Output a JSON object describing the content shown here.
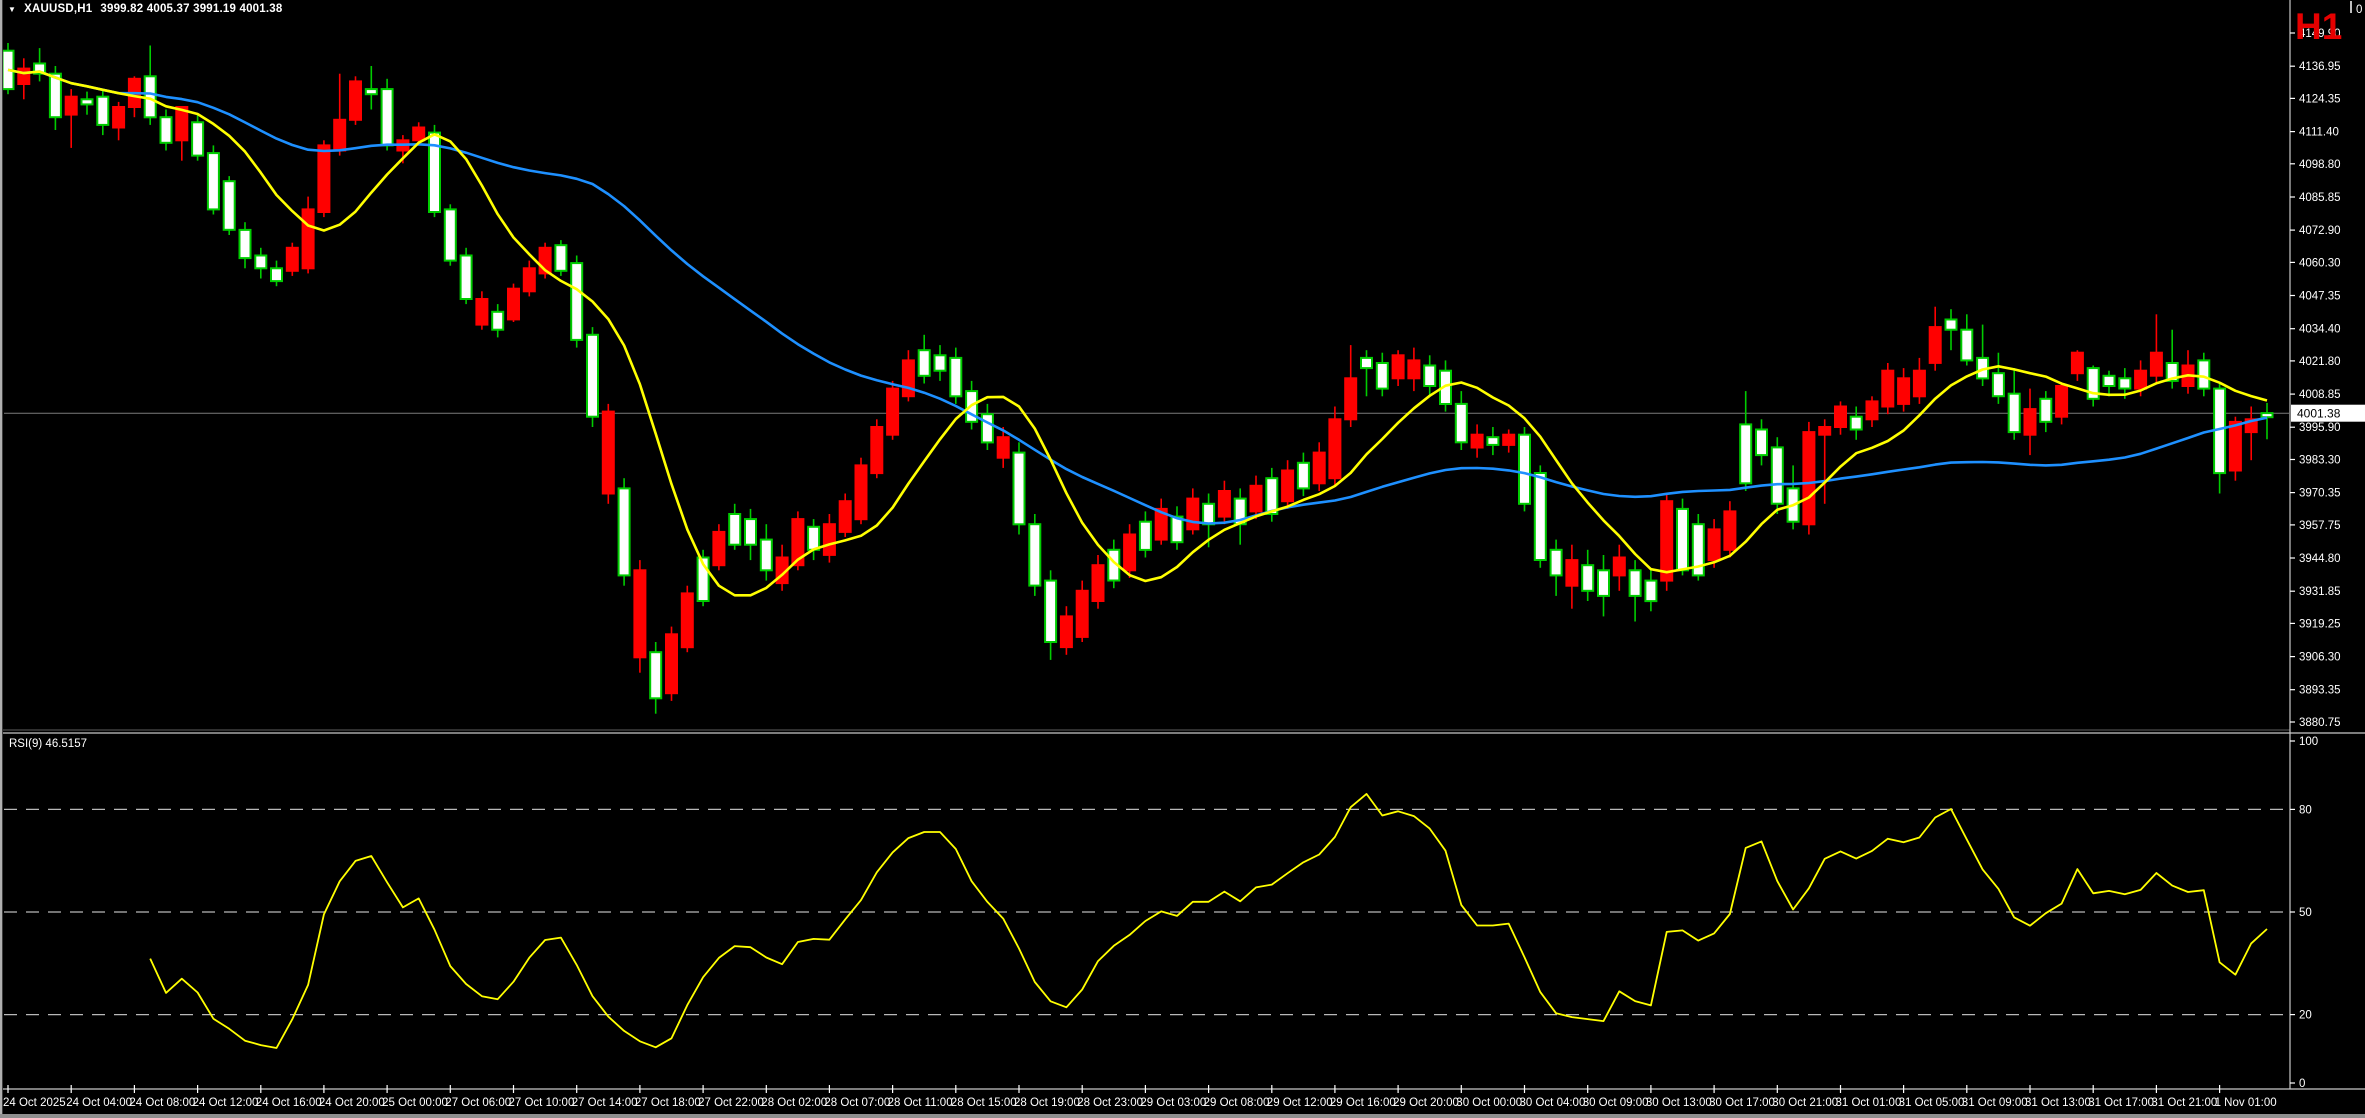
{
  "window": {
    "title_symbol": "XAUUSD,H1",
    "title_quotes": "3999.82 4005.37 3991.19 4001.38",
    "corner_label": "0"
  },
  "timeframe_badge": "H1",
  "indicator_label": "RSI(9) 46.5157",
  "price_axis": {
    "current_price": "4001.38",
    "labels": [
      "4149.90",
      "4136.95",
      "4124.35",
      "4111.40",
      "4098.80",
      "4085.85",
      "4072.90",
      "4060.30",
      "4047.35",
      "4034.40",
      "4021.80",
      "4008.85",
      "3995.90",
      "3983.30",
      "3970.35",
      "3957.75",
      "3944.80",
      "3931.85",
      "3919.25",
      "3906.30",
      "3893.35",
      "3880.75"
    ]
  },
  "rsi_axis": {
    "labels": [
      "100",
      "80",
      "50",
      "20",
      "0"
    ],
    "values": [
      100,
      80,
      50,
      20,
      0
    ],
    "dashed_levels": [
      80,
      50,
      20
    ]
  },
  "time_axis": {
    "labels": [
      "24 Oct 2025",
      "24 Oct 04:00",
      "24 Oct 08:00",
      "24 Oct 12:00",
      "24 Oct 16:00",
      "24 Oct 20:00",
      "25 Oct 00:00",
      "27 Oct 06:00",
      "27 Oct 10:00",
      "27 Oct 14:00",
      "27 Oct 18:00",
      "27 Oct 22:00",
      "28 Oct 02:00",
      "28 Oct 07:00",
      "28 Oct 11:00",
      "28 Oct 15:00",
      "28 Oct 19:00",
      "28 Oct 23:00",
      "29 Oct 03:00",
      "29 Oct 08:00",
      "29 Oct 12:00",
      "29 Oct 16:00",
      "29 Oct 20:00",
      "30 Oct 00:00",
      "30 Oct 04:00",
      "30 Oct 09:00",
      "30 Oct 13:00",
      "30 Oct 17:00",
      "30 Oct 21:00",
      "31 Oct 01:00",
      "31 Oct 05:00",
      "31 Oct 09:00",
      "31 Oct 13:00",
      "31 Oct 17:00",
      "31 Oct 21:00",
      "1 Nov 01:00"
    ]
  },
  "colors": {
    "background": "#000000",
    "bull_fill": "#ffffff",
    "bull_border": "#00cc00",
    "bear": "#ff0000",
    "ma_fast": "#ffff00",
    "ma_slow": "#1e90ff",
    "rsi_line": "#ffff00",
    "price_line": "#7a7a7a",
    "axis_text": "#ffffff",
    "axis_line": "#c8c8c8",
    "level_dash": "#b8b8b8",
    "badge": "#e60000"
  },
  "chart_data": {
    "type": "candlestick",
    "symbol": "XAUUSD",
    "timeframe": "H1",
    "title": "XAUUSD,H1 3999.82 4005.37 3991.19 4001.38",
    "ohlc": {
      "open": 3999.82,
      "high": 4005.37,
      "low": 3991.19,
      "close": 4001.38
    },
    "y_axis_range": [
      3880.75,
      4149.9
    ],
    "candle_format": [
      "high",
      "body_top",
      "body_bottom",
      "low",
      "bullish(1=white,0=red)"
    ],
    "candles": [
      [
        4146,
        4143,
        4128,
        4126,
        1
      ],
      [
        4140,
        4136,
        4130,
        4124,
        0
      ],
      [
        4144,
        4138,
        4134,
        4131,
        1
      ],
      [
        4137,
        4134,
        4117,
        4112,
        1
      ],
      [
        4128,
        4125,
        4118,
        4105,
        0
      ],
      [
        4127,
        4124,
        4122,
        4118,
        1
      ],
      [
        4128,
        4125,
        4114,
        4110,
        1
      ],
      [
        4123,
        4121,
        4113,
        4108,
        0
      ],
      [
        4133,
        4132,
        4121,
        4117,
        0
      ],
      [
        4145,
        4133,
        4117,
        4114,
        1
      ],
      [
        4120,
        4117,
        4107,
        4104,
        1
      ],
      [
        4121,
        4121,
        4108,
        4100,
        0
      ],
      [
        4118,
        4115,
        4102,
        4100,
        1
      ],
      [
        4106,
        4103,
        4081,
        4079,
        1
      ],
      [
        4094,
        4092,
        4073,
        4071,
        1
      ],
      [
        4076,
        4073,
        4062,
        4058,
        1
      ],
      [
        4066,
        4063,
        4058,
        4054,
        1
      ],
      [
        4061,
        4058,
        4053,
        4051,
        1
      ],
      [
        4068,
        4066,
        4057,
        4055,
        0
      ],
      [
        4086,
        4081,
        4058,
        4056,
        0
      ],
      [
        4108,
        4106,
        4080,
        4078,
        0
      ],
      [
        4134,
        4116,
        4104,
        4102,
        0
      ],
      [
        4133,
        4131,
        4116,
        4114,
        0
      ],
      [
        4137,
        4128,
        4126,
        4120,
        1
      ],
      [
        4132,
        4128,
        4106,
        4104,
        1
      ],
      [
        4110,
        4108,
        4104,
        4099,
        0
      ],
      [
        4115,
        4113,
        4108,
        4106,
        0
      ],
      [
        4114,
        4111,
        4080,
        4078,
        1
      ],
      [
        4083,
        4081,
        4061,
        4059,
        1
      ],
      [
        4066,
        4063,
        4046,
        4044,
        1
      ],
      [
        4049,
        4046,
        4036,
        4034,
        0
      ],
      [
        4044,
        4041,
        4034,
        4031,
        1
      ],
      [
        4052,
        4050,
        4038,
        4037,
        0
      ],
      [
        4061,
        4058,
        4049,
        4047,
        0
      ],
      [
        4068,
        4066,
        4056,
        4054,
        0
      ],
      [
        4069,
        4067,
        4057,
        4055,
        1
      ],
      [
        4063,
        4060,
        4030,
        4027,
        1
      ],
      [
        4035,
        4032,
        4000,
        3996,
        1
      ],
      [
        4005,
        4002,
        3970,
        3966,
        0
      ],
      [
        3976,
        3972,
        3938,
        3934,
        1
      ],
      [
        3944,
        3940,
        3906,
        3900,
        0
      ],
      [
        3912,
        3908,
        3890,
        3884,
        1
      ],
      [
        3918,
        3915,
        3892,
        3889,
        0
      ],
      [
        3934,
        3931,
        3910,
        3908,
        0
      ],
      [
        3948,
        3945,
        3928,
        3926,
        1
      ],
      [
        3958,
        3955,
        3942,
        3940,
        0
      ],
      [
        3966,
        3962,
        3950,
        3948,
        1
      ],
      [
        3964,
        3960,
        3950,
        3944,
        1
      ],
      [
        3958,
        3952,
        3940,
        3936,
        1
      ],
      [
        3950,
        3945,
        3935,
        3932,
        0
      ],
      [
        3963,
        3960,
        3942,
        3940,
        0
      ],
      [
        3960,
        3957,
        3948,
        3944,
        1
      ],
      [
        3962,
        3958,
        3946,
        3943,
        0
      ],
      [
        3970,
        3967,
        3955,
        3953,
        0
      ],
      [
        3984,
        3981,
        3960,
        3958,
        0
      ],
      [
        3999,
        3996,
        3978,
        3976,
        0
      ],
      [
        4014,
        4011,
        3993,
        3991,
        0
      ],
      [
        4026,
        4022,
        4008,
        4006,
        0
      ],
      [
        4032,
        4026,
        4016,
        4013,
        1
      ],
      [
        4028,
        4024,
        4018,
        4014,
        1
      ],
      [
        4027,
        4023,
        4008,
        4005,
        1
      ],
      [
        4014,
        4010,
        3998,
        3995,
        1
      ],
      [
        4005,
        4001,
        3990,
        3987,
        1
      ],
      [
        3996,
        3992,
        3984,
        3980,
        0
      ],
      [
        3990,
        3986,
        3958,
        3954,
        1
      ],
      [
        3962,
        3958,
        3934,
        3930,
        1
      ],
      [
        3940,
        3936,
        3912,
        3905,
        1
      ],
      [
        3926,
        3922,
        3910,
        3907,
        0
      ],
      [
        3936,
        3932,
        3914,
        3912,
        0
      ],
      [
        3946,
        3942,
        3928,
        3925,
        0
      ],
      [
        3952,
        3948,
        3936,
        3933,
        1
      ],
      [
        3958,
        3954,
        3940,
        3937,
        0
      ],
      [
        3963,
        3959,
        3948,
        3945,
        1
      ],
      [
        3968,
        3964,
        3952,
        3950,
        0
      ],
      [
        3965,
        3961,
        3951,
        3948,
        1
      ],
      [
        3972,
        3968,
        3956,
        3954,
        0
      ],
      [
        3970,
        3966,
        3958,
        3949,
        1
      ],
      [
        3975,
        3971,
        3961,
        3958,
        0
      ],
      [
        3972,
        3968,
        3958,
        3950,
        1
      ],
      [
        3977,
        3973,
        3963,
        3960,
        0
      ],
      [
        3980,
        3976,
        3962,
        3959,
        1
      ],
      [
        3983,
        3979,
        3967,
        3964,
        0
      ],
      [
        3986,
        3982,
        3972,
        3969,
        1
      ],
      [
        3990,
        3986,
        3974,
        3971,
        0
      ],
      [
        4004,
        3999,
        3976,
        3973,
        0
      ],
      [
        4028,
        4015,
        3999,
        3996,
        0
      ],
      [
        4026,
        4023,
        4019,
        4008,
        1
      ],
      [
        4025,
        4021,
        4011,
        4008,
        1
      ],
      [
        4026,
        4024,
        4015,
        4012,
        0
      ],
      [
        4027,
        4022,
        4015,
        4010,
        0
      ],
      [
        4024,
        4020,
        4012,
        4008,
        1
      ],
      [
        4022,
        4018,
        4005,
        4002,
        1
      ],
      [
        4010,
        4005,
        3990,
        3987,
        1
      ],
      [
        3997,
        3993,
        3988,
        3984,
        0
      ],
      [
        3996,
        3992,
        3989,
        3985,
        1
      ],
      [
        3995,
        3993,
        3989,
        3986,
        0
      ],
      [
        3996,
        3993,
        3966,
        3963,
        1
      ],
      [
        3981,
        3978,
        3944,
        3941,
        1
      ],
      [
        3952,
        3948,
        3938,
        3930,
        1
      ],
      [
        3950,
        3944,
        3934,
        3925,
        0
      ],
      [
        3948,
        3942,
        3932,
        3928,
        1
      ],
      [
        3946,
        3940,
        3930,
        3922,
        1
      ],
      [
        3950,
        3945,
        3938,
        3932,
        0
      ],
      [
        3944,
        3940,
        3930,
        3920,
        1
      ],
      [
        3940,
        3936,
        3928,
        3924,
        1
      ],
      [
        3970,
        3967,
        3936,
        3932,
        0
      ],
      [
        3968,
        3964,
        3940,
        3938,
        1
      ],
      [
        3962,
        3958,
        3938,
        3936,
        1
      ],
      [
        3960,
        3956,
        3944,
        3941,
        0
      ],
      [
        3967,
        3963,
        3948,
        3945,
        0
      ],
      [
        4010,
        3997,
        3974,
        3971,
        1
      ],
      [
        3999,
        3995,
        3985,
        3981,
        1
      ],
      [
        3992,
        3988,
        3966,
        3962,
        1
      ],
      [
        3981,
        3972,
        3959,
        3956,
        1
      ],
      [
        3998,
        3994,
        3958,
        3954,
        0
      ],
      [
        3999,
        3996,
        3993,
        3966,
        0
      ],
      [
        4006,
        4004,
        3996,
        3993,
        0
      ],
      [
        4004,
        4000,
        3995,
        3991,
        1
      ],
      [
        4008,
        4006,
        3999,
        3996,
        0
      ],
      [
        4021,
        4018,
        4004,
        4001,
        0
      ],
      [
        4019,
        4015,
        4005,
        4002,
        0
      ],
      [
        4023,
        4018,
        4008,
        4005,
        0
      ],
      [
        4043,
        4035,
        4021,
        4018,
        0
      ],
      [
        4042,
        4038,
        4034,
        4026,
        1
      ],
      [
        4040,
        4034,
        4022,
        4020,
        1
      ],
      [
        4036,
        4023,
        4015,
        4012,
        1
      ],
      [
        4025,
        4017,
        4008,
        4005,
        1
      ],
      [
        4019,
        4009,
        3994,
        3991,
        1
      ],
      [
        4011,
        4003,
        3993,
        3985,
        0
      ],
      [
        4010,
        4007,
        3998,
        3994,
        1
      ],
      [
        4013,
        4012,
        4000,
        3997,
        0
      ],
      [
        4026,
        4025,
        4017,
        4014,
        0
      ],
      [
        4020,
        4019,
        4007,
        4004,
        1
      ],
      [
        4018,
        4016,
        4012,
        4008,
        1
      ],
      [
        4019,
        4015,
        4011,
        4007,
        1
      ],
      [
        4022,
        4018,
        4011,
        4008,
        0
      ],
      [
        4040,
        4025,
        4016,
        4013,
        0
      ],
      [
        4034,
        4021,
        4014,
        4011,
        1
      ],
      [
        4026,
        4020,
        4012,
        4009,
        0
      ],
      [
        4025,
        4022,
        4011,
        4008,
        1
      ],
      [
        4013,
        4011,
        3978,
        3970,
        1
      ],
      [
        4000,
        3998,
        3979,
        3975,
        0
      ],
      [
        4004,
        3999,
        3994,
        3983,
        0
      ],
      [
        4005.4,
        4001.4,
        3999.8,
        3991.2,
        1
      ]
    ],
    "overlays": [
      {
        "name": "fast-ma",
        "type": "sma",
        "period": 8,
        "color": "#ffff00"
      },
      {
        "name": "slow-ma",
        "type": "sma",
        "period": 38,
        "color": "#1e90ff"
      }
    ],
    "indicator_pane": {
      "type": "rsi",
      "period": 9,
      "value": 46.5157,
      "levels": [
        80,
        50,
        20
      ],
      "range": [
        0,
        100
      ],
      "color": "#ffff00"
    }
  }
}
